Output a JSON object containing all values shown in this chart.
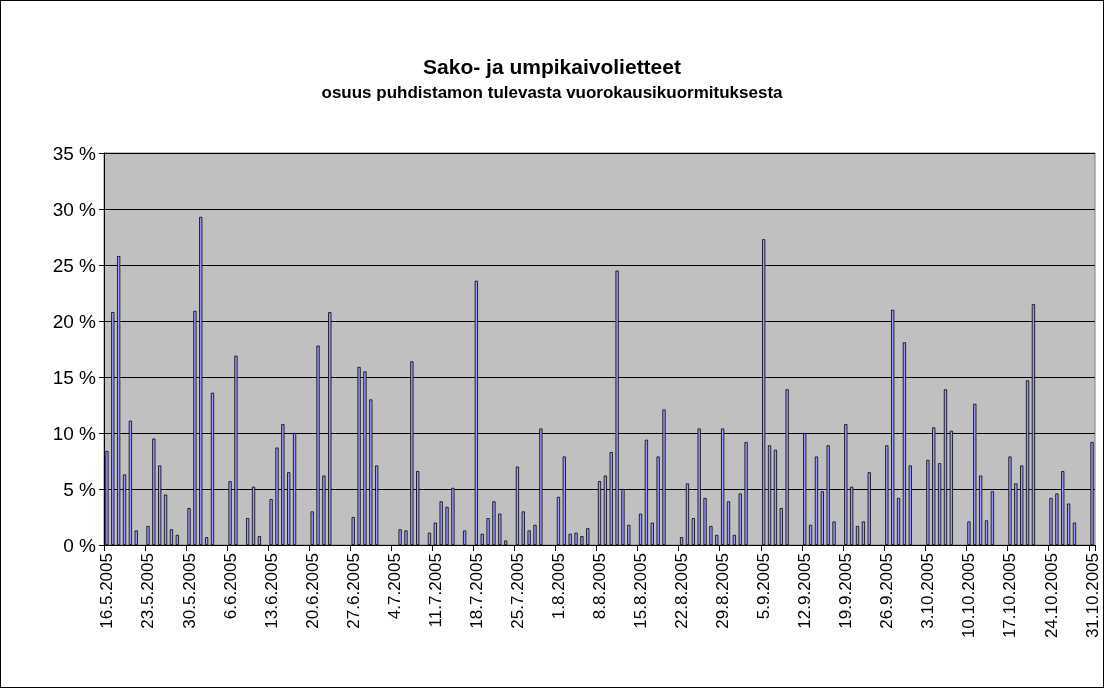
{
  "chart_data": {
    "type": "bar",
    "title": "Sako- ja umpikaivolietteet",
    "subtitle": "osuus puhdistamon tulevasta vuorokausikuormituksesta",
    "categories": [
      "16.5.2005",
      null,
      null,
      null,
      null,
      null,
      null,
      "23.5.2005",
      null,
      null,
      null,
      null,
      null,
      null,
      "30.5.2005",
      null,
      null,
      null,
      null,
      null,
      null,
      "6.6.2005",
      null,
      null,
      null,
      null,
      null,
      null,
      "13.6.2005",
      null,
      null,
      null,
      null,
      null,
      null,
      "20.6.2005",
      null,
      null,
      null,
      null,
      null,
      null,
      "27.6.2005",
      null,
      null,
      null,
      null,
      null,
      null,
      "4.7.2005",
      null,
      null,
      null,
      null,
      null,
      null,
      "11.7.2005",
      null,
      null,
      null,
      null,
      null,
      null,
      "18.7.2005",
      null,
      null,
      null,
      null,
      null,
      null,
      "25.7.2005",
      null,
      null,
      null,
      null,
      null,
      null,
      "1.8.2005",
      null,
      null,
      null,
      null,
      null,
      null,
      "8.8.2005",
      null,
      null,
      null,
      null,
      null,
      null,
      "15.8.2005",
      null,
      null,
      null,
      null,
      null,
      null,
      "22.8.2005",
      null,
      null,
      null,
      null,
      null,
      null,
      "29.8.2005",
      null,
      null,
      null,
      null,
      null,
      null,
      "5.9.2005",
      null,
      null,
      null,
      null,
      null,
      null,
      "12.9.2005",
      null,
      null,
      null,
      null,
      null,
      null,
      "19.9.2005",
      null,
      null,
      null,
      null,
      null,
      null,
      "26.9.2005",
      null,
      null,
      null,
      null,
      null,
      null,
      "3.10.2005",
      null,
      null,
      null,
      null,
      null,
      null,
      "10.10.2005",
      null,
      null,
      null,
      null,
      null,
      null,
      "17.10.2005",
      null,
      null,
      null,
      null,
      null,
      null,
      "24.10.2005",
      null,
      null,
      null,
      null,
      null,
      null,
      "31.10.2005"
    ],
    "values": [
      8.4,
      20.8,
      25.8,
      6.3,
      11.1,
      1.3,
      null,
      1.7,
      9.5,
      7.1,
      4.5,
      1.4,
      0.9,
      null,
      3.3,
      20.9,
      29.3,
      0.7,
      13.6,
      null,
      null,
      5.7,
      16.9,
      null,
      2.4,
      5.2,
      0.8,
      null,
      4.1,
      8.7,
      10.8,
      6.5,
      10.0,
      null,
      null,
      3.0,
      17.8,
      6.2,
      20.8,
      null,
      null,
      null,
      2.5,
      15.9,
      15.5,
      13.0,
      7.1,
      null,
      null,
      null,
      1.4,
      1.3,
      16.4,
      6.6,
      null,
      1.1,
      2.0,
      3.9,
      3.4,
      5.1,
      null,
      1.3,
      null,
      23.6,
      1.0,
      2.4,
      3.9,
      2.8,
      0.4,
      null,
      7.0,
      3.0,
      1.3,
      1.8,
      10.4,
      null,
      null,
      4.3,
      7.9,
      1.0,
      1.1,
      0.8,
      1.5,
      null,
      5.7,
      6.2,
      8.3,
      24.5,
      5.0,
      1.8,
      null,
      2.8,
      9.4,
      2.0,
      7.9,
      12.1,
      null,
      null,
      0.7,
      5.5,
      2.4,
      10.4,
      4.2,
      1.7,
      0.9,
      10.4,
      3.9,
      0.9,
      4.6,
      9.2,
      null,
      null,
      27.3,
      8.9,
      8.5,
      3.3,
      13.9,
      null,
      null,
      10.0,
      1.8,
      7.9,
      4.8,
      8.9,
      2.1,
      null,
      10.8,
      5.2,
      1.7,
      2.1,
      6.5,
      null,
      null,
      8.9,
      21.0,
      4.2,
      18.1,
      7.1,
      null,
      null,
      7.6,
      10.5,
      7.3,
      13.9,
      10.2,
      null,
      null,
      2.1,
      12.6,
      6.2,
      2.2,
      4.8,
      null,
      null,
      7.9,
      5.5,
      7.1,
      14.7,
      21.5,
      null,
      null,
      4.2,
      4.6,
      6.6,
      3.7,
      2.0,
      null,
      null,
      9.2
    ],
    "color": "#9999ff",
    "ylim": [
      0,
      35
    ],
    "yticks": [
      {
        "value": 0,
        "label": "0 %"
      },
      {
        "value": 5,
        "label": "5 %"
      },
      {
        "value": 10,
        "label": "10 %"
      },
      {
        "value": 15,
        "label": "15 %"
      },
      {
        "value": 20,
        "label": "20 %"
      },
      {
        "value": 25,
        "label": "25 %"
      },
      {
        "value": 30,
        "label": "30 %"
      },
      {
        "value": 35,
        "label": "35 %"
      }
    ],
    "grid": "y"
  }
}
